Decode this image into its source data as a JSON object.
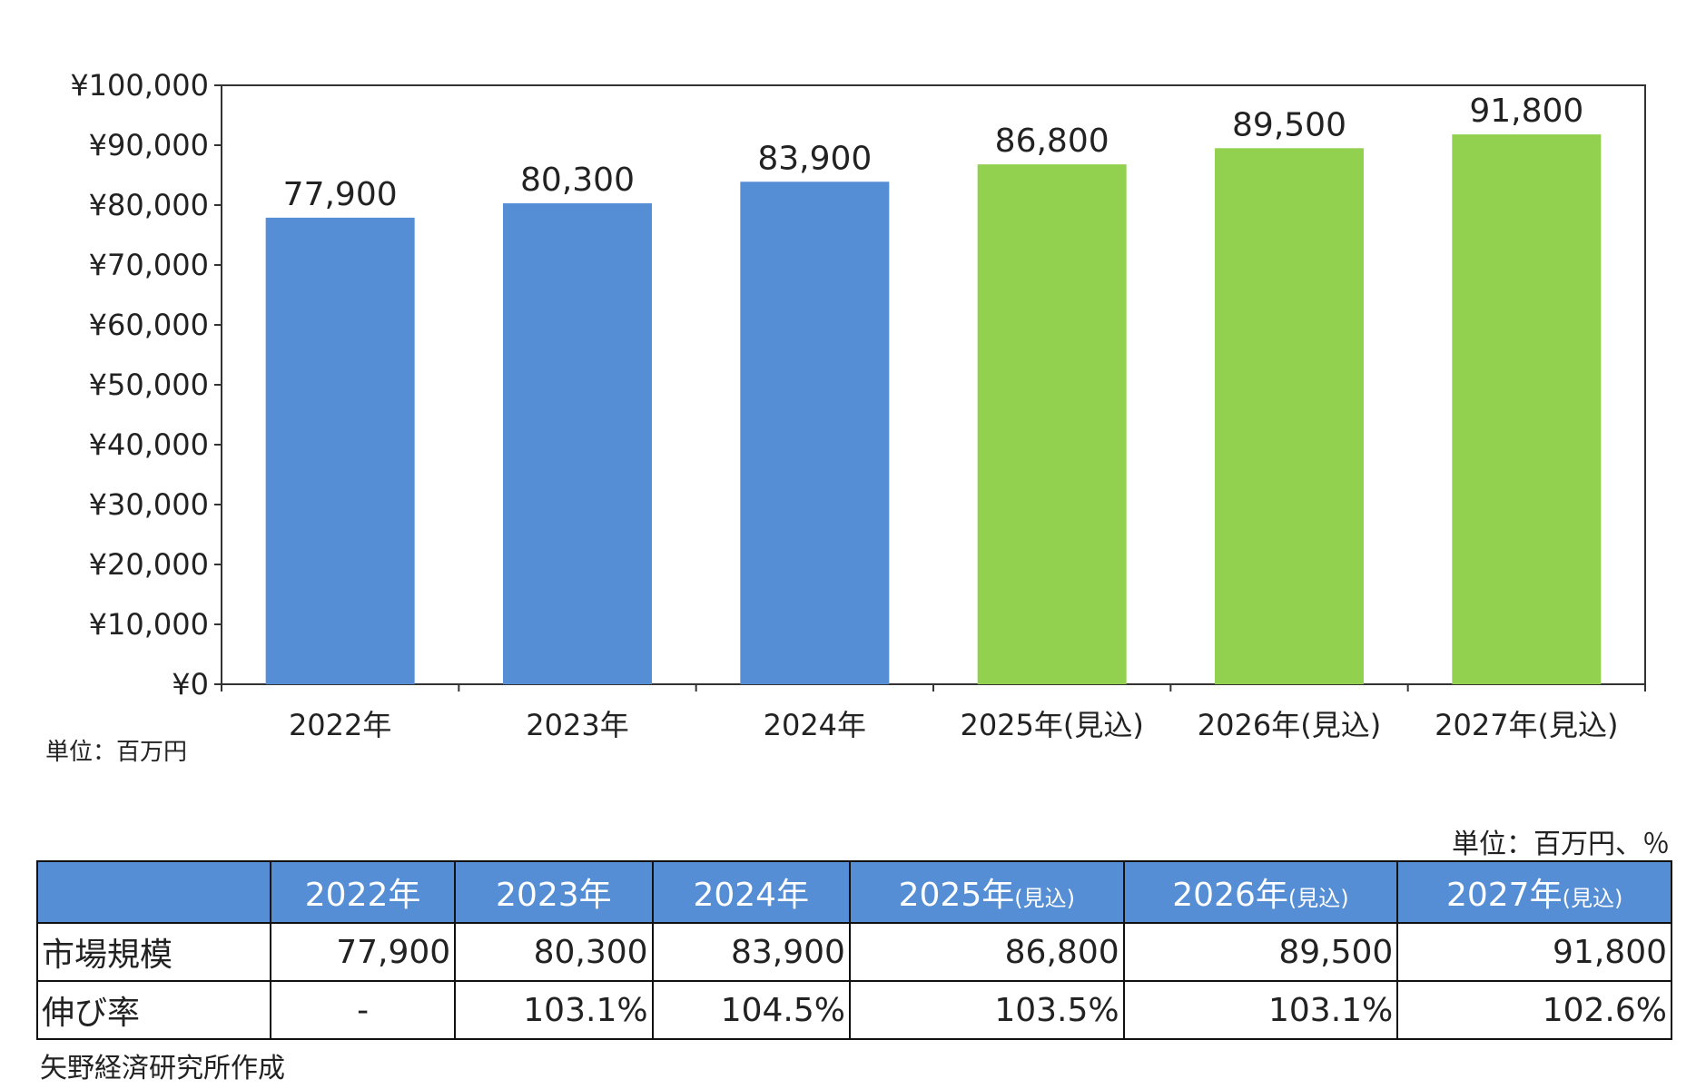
{
  "chart_data": {
    "type": "bar",
    "categories": [
      "2022年",
      "2023年",
      "2024年",
      "2025年(見込)",
      "2026年(見込)",
      "2027年(見込)"
    ],
    "values": [
      77900,
      80300,
      83900,
      86800,
      89500,
      91800
    ],
    "data_labels": [
      "77,900",
      "80,300",
      "83,900",
      "86,800",
      "89,500",
      "91,800"
    ],
    "bar_colors": [
      "#558ed5",
      "#558ed5",
      "#558ed5",
      "#92d050",
      "#92d050",
      "#92d050"
    ],
    "ylim": [
      0,
      100000
    ],
    "yticks": [
      "¥0",
      "¥10,000",
      "¥20,000",
      "¥30,000",
      "¥40,000",
      "¥50,000",
      "¥60,000",
      "¥70,000",
      "¥80,000",
      "¥90,000",
      "¥100,000"
    ],
    "grid": false,
    "unit_label": "単位：百万円"
  },
  "table": {
    "unit_label": "単位：百万円、％",
    "header_color": "#558ed5",
    "headers": [
      {
        "year": "2022年",
        "note": ""
      },
      {
        "year": "2023年",
        "note": ""
      },
      {
        "year": "2024年",
        "note": ""
      },
      {
        "year": "2025年",
        "note": "(見込)"
      },
      {
        "year": "2026年",
        "note": "(見込)"
      },
      {
        "year": "2027年",
        "note": "(見込)"
      }
    ],
    "rows": [
      {
        "label": "市場規模",
        "cells": [
          "77,900",
          "80,300",
          "83,900",
          "86,800",
          "89,500",
          "91,800"
        ]
      },
      {
        "label": "伸び率",
        "cells": [
          "-",
          "103.1%",
          "104.5%",
          "103.5%",
          "103.1%",
          "102.6%"
        ]
      }
    ]
  },
  "source": "矢野経済研究所作成"
}
